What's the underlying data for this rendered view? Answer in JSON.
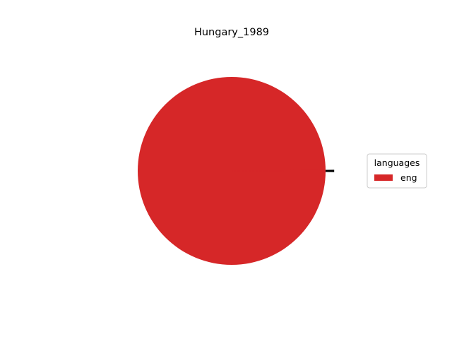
{
  "chart_data": {
    "type": "pie",
    "title": "Hungary_1989",
    "legend": {
      "title": "languages",
      "placement": "right",
      "entries": [
        {
          "label": "eng",
          "color": "#d62728"
        }
      ]
    },
    "slices": [
      {
        "label": "eng",
        "value": 99.6,
        "color": "#d62728",
        "exploded": false
      },
      {
        "label": "",
        "value": 0.4,
        "color": "#000000",
        "exploded": true
      }
    ]
  }
}
